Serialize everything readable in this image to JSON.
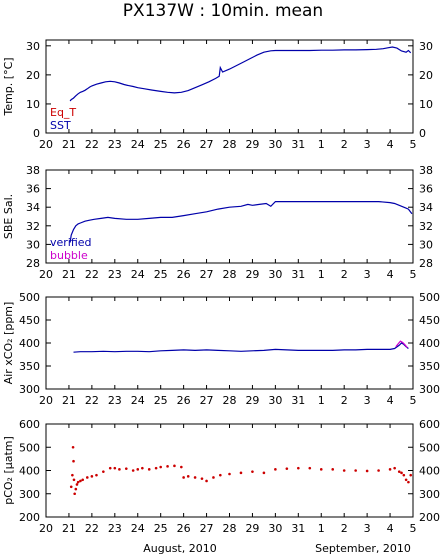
{
  "figure": {
    "title": "PX137W : 10min. mean",
    "x_caption_left": "August, 2010",
    "x_caption_right": "September, 2010",
    "x_tick_labels": [
      "20",
      "21",
      "22",
      "23",
      "24",
      "25",
      "26",
      "27",
      "28",
      "29",
      "30",
      "31",
      "1",
      "2",
      "3",
      "4",
      "5"
    ]
  },
  "chart_data": [
    {
      "type": "line",
      "ylabel": "Temp. [°C]",
      "ylim": [
        0,
        32
      ],
      "yticks": [
        0,
        10,
        20,
        30
      ],
      "xlim": [
        0,
        16
      ],
      "legend": [
        {
          "label": "Eq_T",
          "color": "#cc0000"
        },
        {
          "label": "SST",
          "color": "#0000aa"
        }
      ],
      "series": [
        {
          "name": "SST",
          "color": "#0000aa",
          "x": [
            1.05,
            1.1,
            1.2,
            1.3,
            1.4,
            1.5,
            1.6,
            1.7,
            1.8,
            1.9,
            2.0,
            2.2,
            2.4,
            2.6,
            2.8,
            3.0,
            3.2,
            3.4,
            3.6,
            3.8,
            4.0,
            4.3,
            4.6,
            5.0,
            5.3,
            5.6,
            5.9,
            6.2,
            6.5,
            6.8,
            7.1,
            7.4,
            7.55,
            7.6,
            7.7,
            8.0,
            8.3,
            8.6,
            8.9,
            9.2,
            9.5,
            9.8,
            10.0,
            10.5,
            11.0,
            11.5,
            12.0,
            12.5,
            13.0,
            13.5,
            14.0,
            14.4,
            14.7,
            14.9,
            15.1,
            15.3,
            15.5,
            15.7,
            15.8,
            15.9
          ],
          "y": [
            11,
            11.5,
            12,
            12.8,
            13.5,
            14.0,
            14.3,
            14.7,
            15.2,
            15.8,
            16.2,
            16.8,
            17.2,
            17.6,
            17.8,
            17.6,
            17.2,
            16.7,
            16.3,
            16.0,
            15.6,
            15.2,
            14.8,
            14.3,
            14.0,
            13.8,
            14.0,
            14.6,
            15.6,
            16.6,
            17.6,
            18.8,
            19.5,
            22.5,
            21.0,
            22.0,
            23.2,
            24.4,
            25.6,
            26.8,
            27.8,
            28.3,
            28.4,
            28.4,
            28.4,
            28.4,
            28.5,
            28.5,
            28.6,
            28.6,
            28.7,
            28.8,
            29.0,
            29.3,
            29.6,
            29.2,
            28.2,
            27.8,
            28.4,
            27.6
          ]
        }
      ]
    },
    {
      "type": "line",
      "ylabel": "SBE Sal.",
      "ylim": [
        28,
        38
      ],
      "yticks": [
        28,
        30,
        32,
        34,
        36,
        38
      ],
      "xlim": [
        0,
        16
      ],
      "legend": [
        {
          "label": "verified",
          "color": "#0000aa"
        },
        {
          "label": "bubble",
          "color": "#cc00cc"
        }
      ],
      "series": [
        {
          "name": "verified",
          "color": "#0000aa",
          "x": [
            1.05,
            1.1,
            1.2,
            1.3,
            1.4,
            1.5,
            1.7,
            1.9,
            2.1,
            2.4,
            2.7,
            3.0,
            3.5,
            4.0,
            4.5,
            5.0,
            5.5,
            6.0,
            6.5,
            7.0,
            7.5,
            8.0,
            8.5,
            8.8,
            9.0,
            9.3,
            9.6,
            9.8,
            10.0,
            10.5,
            11.0,
            11.5,
            12.0,
            12.5,
            13.0,
            13.5,
            14.0,
            14.5,
            15.0,
            15.2,
            15.4,
            15.6,
            15.8,
            15.95
          ],
          "y": [
            30.2,
            31.0,
            31.6,
            32.0,
            32.2,
            32.3,
            32.5,
            32.6,
            32.7,
            32.8,
            32.9,
            32.8,
            32.7,
            32.7,
            32.8,
            32.9,
            32.9,
            33.1,
            33.3,
            33.5,
            33.8,
            34.0,
            34.1,
            34.3,
            34.2,
            34.3,
            34.4,
            34.1,
            34.6,
            34.6,
            34.6,
            34.6,
            34.6,
            34.6,
            34.6,
            34.6,
            34.6,
            34.6,
            34.5,
            34.4,
            34.2,
            34.0,
            33.8,
            33.3
          ]
        }
      ]
    },
    {
      "type": "line",
      "ylabel": "Air xCO₂ [ppm]",
      "ylim": [
        300,
        500
      ],
      "yticks": [
        300,
        350,
        400,
        450,
        500
      ],
      "xlim": [
        0,
        16
      ],
      "series": [
        {
          "name": "",
          "color": "#0000aa",
          "x": [
            1.2,
            1.5,
            2.0,
            2.5,
            3.0,
            3.5,
            4.0,
            4.5,
            5.0,
            5.5,
            6.0,
            6.5,
            7.0,
            7.5,
            8.0,
            8.5,
            9.0,
            9.5,
            10.0,
            10.5,
            11.0,
            11.5,
            12.0,
            12.5,
            13.0,
            13.5,
            14.0,
            14.5,
            15.0,
            15.2,
            15.4,
            15.5,
            15.6,
            15.7,
            15.8
          ],
          "y": [
            380,
            381,
            381,
            382,
            381,
            382,
            382,
            381,
            383,
            384,
            385,
            384,
            385,
            384,
            383,
            382,
            383,
            384,
            386,
            385,
            384,
            384,
            384,
            384,
            385,
            385,
            386,
            386,
            386,
            388,
            395,
            400,
            397,
            392,
            388
          ]
        },
        {
          "name": "",
          "color": "#cc00cc",
          "x": [
            15.25,
            15.35,
            15.45,
            15.55,
            15.65,
            15.75
          ],
          "y": [
            392,
            398,
            404,
            401,
            396,
            390
          ]
        }
      ]
    },
    {
      "type": "scatter",
      "ylabel": "pCO₂ [μatm]",
      "ylim": [
        200,
        600
      ],
      "yticks": [
        200,
        300,
        400,
        500,
        600
      ],
      "xlim": [
        0,
        16
      ],
      "series": [
        {
          "name": "",
          "color": "#cc0000",
          "x": [
            1.1,
            1.15,
            1.18,
            1.2,
            1.22,
            1.25,
            1.3,
            1.35,
            1.4,
            1.5,
            1.6,
            1.8,
            2.0,
            2.2,
            2.5,
            2.8,
            3.0,
            3.2,
            3.5,
            3.8,
            4.0,
            4.2,
            4.5,
            4.8,
            5.0,
            5.3,
            5.6,
            5.9,
            6.0,
            6.2,
            6.5,
            6.8,
            7.0,
            7.3,
            7.6,
            8.0,
            8.5,
            9.0,
            9.5,
            10.0,
            10.5,
            11.0,
            11.5,
            12.0,
            12.5,
            13.0,
            13.5,
            14.0,
            14.5,
            15.0,
            15.2,
            15.4,
            15.5,
            15.6,
            15.7,
            15.8,
            15.9
          ],
          "y": [
            330,
            380,
            500,
            440,
            360,
            300,
            320,
            340,
            350,
            355,
            360,
            370,
            375,
            380,
            395,
            410,
            410,
            405,
            408,
            400,
            405,
            410,
            405,
            410,
            415,
            418,
            420,
            415,
            370,
            375,
            370,
            365,
            355,
            370,
            380,
            385,
            390,
            395,
            390,
            405,
            408,
            410,
            410,
            405,
            405,
            400,
            400,
            398,
            400,
            405,
            410,
            395,
            390,
            380,
            360,
            350,
            380
          ]
        }
      ]
    }
  ]
}
